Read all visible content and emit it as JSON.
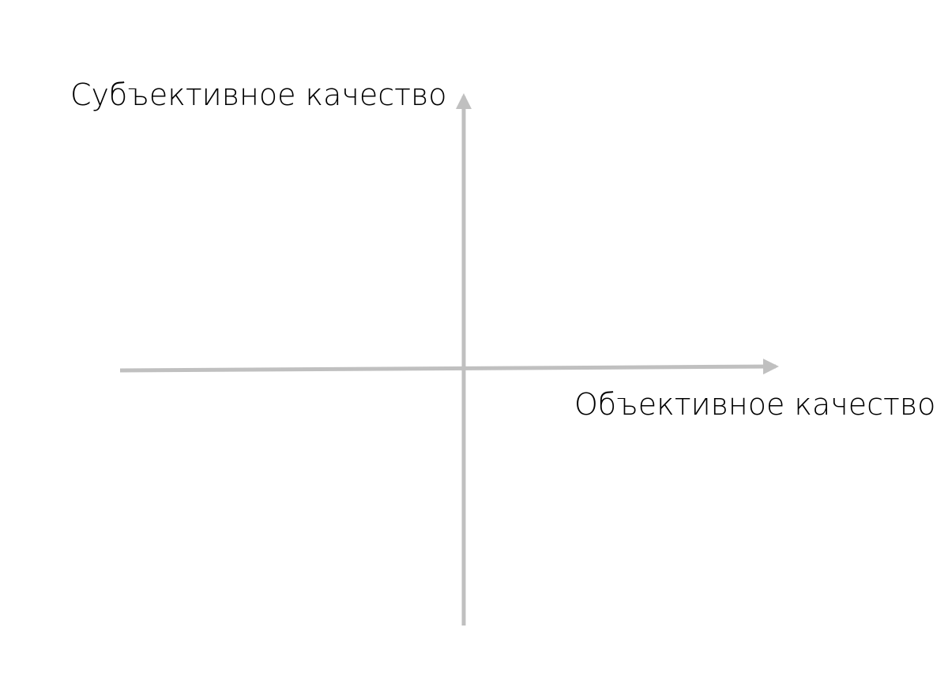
{
  "diagram": {
    "y_axis_label": "Субъективное качество",
    "x_axis_label": "Объективное качество",
    "axis_color": "#c0c0c0",
    "text_color": "#000000"
  }
}
